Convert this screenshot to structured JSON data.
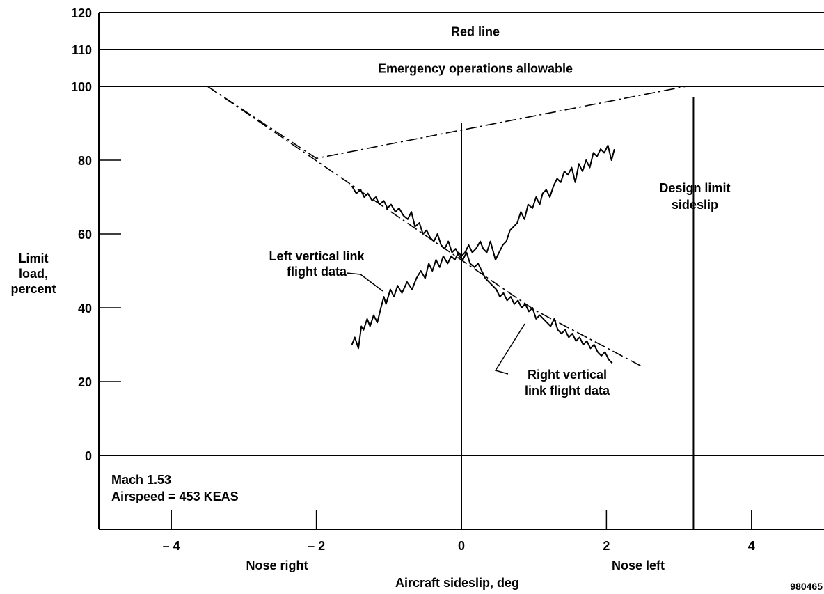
{
  "chart_data": {
    "type": "line",
    "xlabel": "Aircraft sideslip, deg",
    "ylabel_lines": [
      "Limit",
      "load,",
      "percent"
    ],
    "xlim": [
      -5,
      5
    ],
    "ylim": [
      -20,
      120
    ],
    "x_ticks": [
      -4,
      -2,
      0,
      2,
      4
    ],
    "x_tick_labels": [
      "– 4",
      "– 2",
      "0",
      "2",
      "4"
    ],
    "y_ticks": [
      0,
      20,
      40,
      60,
      80,
      100,
      110,
      120
    ],
    "y_tick_labels": [
      "0",
      "20",
      "40",
      "60",
      "80",
      "100",
      "110",
      "120"
    ],
    "bands": [
      {
        "label": "Red line",
        "y_from": 110,
        "y_to": 120
      },
      {
        "label": "Emergency operations allowable",
        "y_from": 100,
        "y_to": 110
      }
    ],
    "reference_lines": [
      {
        "axis": "y",
        "value": 0
      },
      {
        "axis": "x",
        "value": 0
      },
      {
        "axis": "x",
        "value": 3.2,
        "label_lines": [
          "Design limit",
          "sideslip"
        ]
      }
    ],
    "fit_lines": [
      {
        "name": "left-fit",
        "x": [
          -3.5,
          -2.0,
          3.1
        ],
        "y": [
          100,
          80.5,
          100
        ],
        "style": "dash-dot"
      },
      {
        "name": "right-fit",
        "x": [
          -3.5,
          1.0,
          2.5
        ],
        "y": [
          100,
          39.5,
          24
        ],
        "style": "dash-dot"
      }
    ],
    "series": [
      {
        "name": "Left vertical link flight data",
        "label_lines": [
          "Left vertical link",
          "flight data"
        ],
        "x": [
          -1.51,
          -1.47,
          -1.42,
          -1.38,
          -1.35,
          -1.3,
          -1.26,
          -1.21,
          -1.16,
          -1.11,
          -1.07,
          -1.04,
          -0.98,
          -0.93,
          -0.88,
          -0.82,
          -0.75,
          -0.68,
          -0.62,
          -0.56,
          -0.5,
          -0.45,
          -0.4,
          -0.35,
          -0.3,
          -0.25,
          -0.19,
          -0.14,
          -0.09,
          -0.04,
          0.0,
          0.05,
          0.1,
          0.15,
          0.2,
          0.26,
          0.3,
          0.35,
          0.4,
          0.47,
          0.52,
          0.57,
          0.62,
          0.67,
          0.72,
          0.77,
          0.82,
          0.87,
          0.92,
          0.98,
          1.03,
          1.08,
          1.12,
          1.17,
          1.22,
          1.27,
          1.32,
          1.37,
          1.42,
          1.47,
          1.52,
          1.57,
          1.62,
          1.67,
          1.72,
          1.77,
          1.82,
          1.87,
          1.92,
          1.97,
          2.02,
          2.07,
          2.11
        ],
        "y": [
          30,
          32,
          29,
          35,
          34,
          37,
          35,
          38,
          36,
          40,
          43,
          41,
          45,
          43,
          46,
          44,
          47,
          45,
          48,
          50,
          48,
          52,
          50,
          53,
          51,
          54,
          52,
          54,
          53,
          55,
          54,
          55,
          57,
          55,
          56,
          58,
          56,
          55,
          58,
          53,
          55,
          57,
          58,
          61,
          62,
          63,
          66,
          64,
          68,
          67,
          70,
          68,
          71,
          72,
          70,
          73,
          75,
          74,
          77,
          76,
          78,
          74,
          79,
          77,
          80,
          78,
          82,
          81,
          83,
          82,
          84,
          80,
          83
        ]
      },
      {
        "name": "Right vertical link flight data",
        "label_lines": [
          "Right vertical",
          "link flight data"
        ],
        "x": [
          -1.51,
          -1.45,
          -1.39,
          -1.34,
          -1.29,
          -1.23,
          -1.18,
          -1.13,
          -1.07,
          -1.02,
          -0.97,
          -0.91,
          -0.86,
          -0.8,
          -0.74,
          -0.69,
          -0.64,
          -0.58,
          -0.53,
          -0.48,
          -0.43,
          -0.38,
          -0.33,
          -0.28,
          -0.23,
          -0.18,
          -0.13,
          -0.08,
          -0.03,
          0.02,
          0.07,
          0.12,
          0.18,
          0.23,
          0.28,
          0.33,
          0.38,
          0.43,
          0.48,
          0.53,
          0.58,
          0.63,
          0.68,
          0.73,
          0.78,
          0.83,
          0.88,
          0.93,
          0.98,
          1.03,
          1.08,
          1.13,
          1.18,
          1.23,
          1.28,
          1.33,
          1.38,
          1.43,
          1.48,
          1.53,
          1.58,
          1.63,
          1.68,
          1.73,
          1.78,
          1.83,
          1.88,
          1.93,
          1.98,
          2.03,
          2.08
        ],
        "y": [
          73,
          71,
          72,
          70,
          71,
          69,
          70,
          68,
          69,
          67,
          68,
          66,
          67,
          65,
          64,
          66,
          62,
          63,
          60,
          61,
          59,
          58,
          60,
          57,
          56,
          58,
          55,
          56,
          54,
          53,
          55,
          52,
          51,
          52,
          50,
          48,
          47,
          46,
          45,
          43,
          44,
          42,
          43,
          41,
          42,
          40,
          41,
          39,
          40,
          37,
          38,
          37,
          36,
          35,
          37,
          34,
          33,
          34,
          32,
          33,
          31,
          32,
          30,
          31,
          29,
          30,
          28,
          27,
          28,
          26,
          25
        ]
      }
    ],
    "annotations": [
      {
        "text": "Mach 1.53"
      },
      {
        "text": "Airspeed = 453 KEAS"
      },
      {
        "text": "Nose right"
      },
      {
        "text": "Nose left"
      },
      {
        "text": "980465"
      }
    ]
  }
}
